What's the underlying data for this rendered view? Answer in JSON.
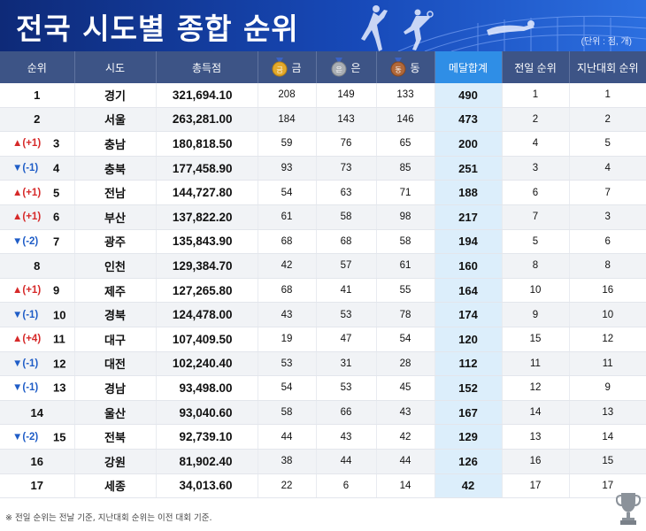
{
  "header": {
    "title": "전국 시도별 종합 순위",
    "unit": "(단위 : 점, 개)"
  },
  "columns": {
    "rank": "순위",
    "region": "시도",
    "score": "총득점",
    "gold": "금",
    "silver": "은",
    "bronze": "동",
    "gold_badge": "금",
    "silver_badge": "은",
    "bronze_badge": "동",
    "medal_total": "메달합계",
    "prev_rank": "전일 순위",
    "last_rank": "지난대회 순위"
  },
  "colors": {
    "gold": "#e3a92b",
    "silver": "#9aa0a6",
    "bronze": "#b0683a",
    "up": "#d62929",
    "down": "#1f5dc7"
  },
  "rows": [
    {
      "rank": "1",
      "change": "",
      "dir": "",
      "region": "경기",
      "score": "321,694.10",
      "gold": "208",
      "silver": "149",
      "bronze": "133",
      "total": "490",
      "prev": "1",
      "last": "1"
    },
    {
      "rank": "2",
      "change": "",
      "dir": "",
      "region": "서울",
      "score": "263,281.00",
      "gold": "184",
      "silver": "143",
      "bronze": "146",
      "total": "473",
      "prev": "2",
      "last": "2"
    },
    {
      "rank": "3",
      "change": "▲(+1)",
      "dir": "up",
      "region": "충남",
      "score": "180,818.50",
      "gold": "59",
      "silver": "76",
      "bronze": "65",
      "total": "200",
      "prev": "4",
      "last": "5"
    },
    {
      "rank": "4",
      "change": "▼(-1)",
      "dir": "down",
      "region": "충북",
      "score": "177,458.90",
      "gold": "93",
      "silver": "73",
      "bronze": "85",
      "total": "251",
      "prev": "3",
      "last": "4"
    },
    {
      "rank": "5",
      "change": "▲(+1)",
      "dir": "up",
      "region": "전남",
      "score": "144,727.80",
      "gold": "54",
      "silver": "63",
      "bronze": "71",
      "total": "188",
      "prev": "6",
      "last": "7"
    },
    {
      "rank": "6",
      "change": "▲(+1)",
      "dir": "up",
      "region": "부산",
      "score": "137,822.20",
      "gold": "61",
      "silver": "58",
      "bronze": "98",
      "total": "217",
      "prev": "7",
      "last": "3"
    },
    {
      "rank": "7",
      "change": "▼(-2)",
      "dir": "down",
      "region": "광주",
      "score": "135,843.90",
      "gold": "68",
      "silver": "68",
      "bronze": "58",
      "total": "194",
      "prev": "5",
      "last": "6"
    },
    {
      "rank": "8",
      "change": "",
      "dir": "",
      "region": "인천",
      "score": "129,384.70",
      "gold": "42",
      "silver": "57",
      "bronze": "61",
      "total": "160",
      "prev": "8",
      "last": "8"
    },
    {
      "rank": "9",
      "change": "▲(+1)",
      "dir": "up",
      "region": "제주",
      "score": "127,265.80",
      "gold": "68",
      "silver": "41",
      "bronze": "55",
      "total": "164",
      "prev": "10",
      "last": "16"
    },
    {
      "rank": "10",
      "change": "▼(-1)",
      "dir": "down",
      "region": "경북",
      "score": "124,478.00",
      "gold": "43",
      "silver": "53",
      "bronze": "78",
      "total": "174",
      "prev": "9",
      "last": "10"
    },
    {
      "rank": "11",
      "change": "▲(+4)",
      "dir": "up",
      "region": "대구",
      "score": "107,409.50",
      "gold": "19",
      "silver": "47",
      "bronze": "54",
      "total": "120",
      "prev": "15",
      "last": "12"
    },
    {
      "rank": "12",
      "change": "▼(-1)",
      "dir": "down",
      "region": "대전",
      "score": "102,240.40",
      "gold": "53",
      "silver": "31",
      "bronze": "28",
      "total": "112",
      "prev": "11",
      "last": "11"
    },
    {
      "rank": "13",
      "change": "▼(-1)",
      "dir": "down",
      "region": "경남",
      "score": "93,498.00",
      "gold": "54",
      "silver": "53",
      "bronze": "45",
      "total": "152",
      "prev": "12",
      "last": "9"
    },
    {
      "rank": "14",
      "change": "",
      "dir": "",
      "region": "울산",
      "score": "93,040.60",
      "gold": "58",
      "silver": "66",
      "bronze": "43",
      "total": "167",
      "prev": "14",
      "last": "13"
    },
    {
      "rank": "15",
      "change": "▼(-2)",
      "dir": "down",
      "region": "전북",
      "score": "92,739.10",
      "gold": "44",
      "silver": "43",
      "bronze": "42",
      "total": "129",
      "prev": "13",
      "last": "14"
    },
    {
      "rank": "16",
      "change": "",
      "dir": "",
      "region": "강원",
      "score": "81,902.40",
      "gold": "38",
      "silver": "44",
      "bronze": "44",
      "total": "126",
      "prev": "16",
      "last": "15"
    },
    {
      "rank": "17",
      "change": "",
      "dir": "",
      "region": "세종",
      "score": "34,013.60",
      "gold": "22",
      "silver": "6",
      "bronze": "14",
      "total": "42",
      "prev": "17",
      "last": "17"
    }
  ],
  "footnote": "※ 전일 순위는 전날 기준, 지난대회 순위는 이전 대회 기준.",
  "icons": {
    "trophy": "trophy-icon",
    "sports": "sports-silhouette-icon"
  }
}
